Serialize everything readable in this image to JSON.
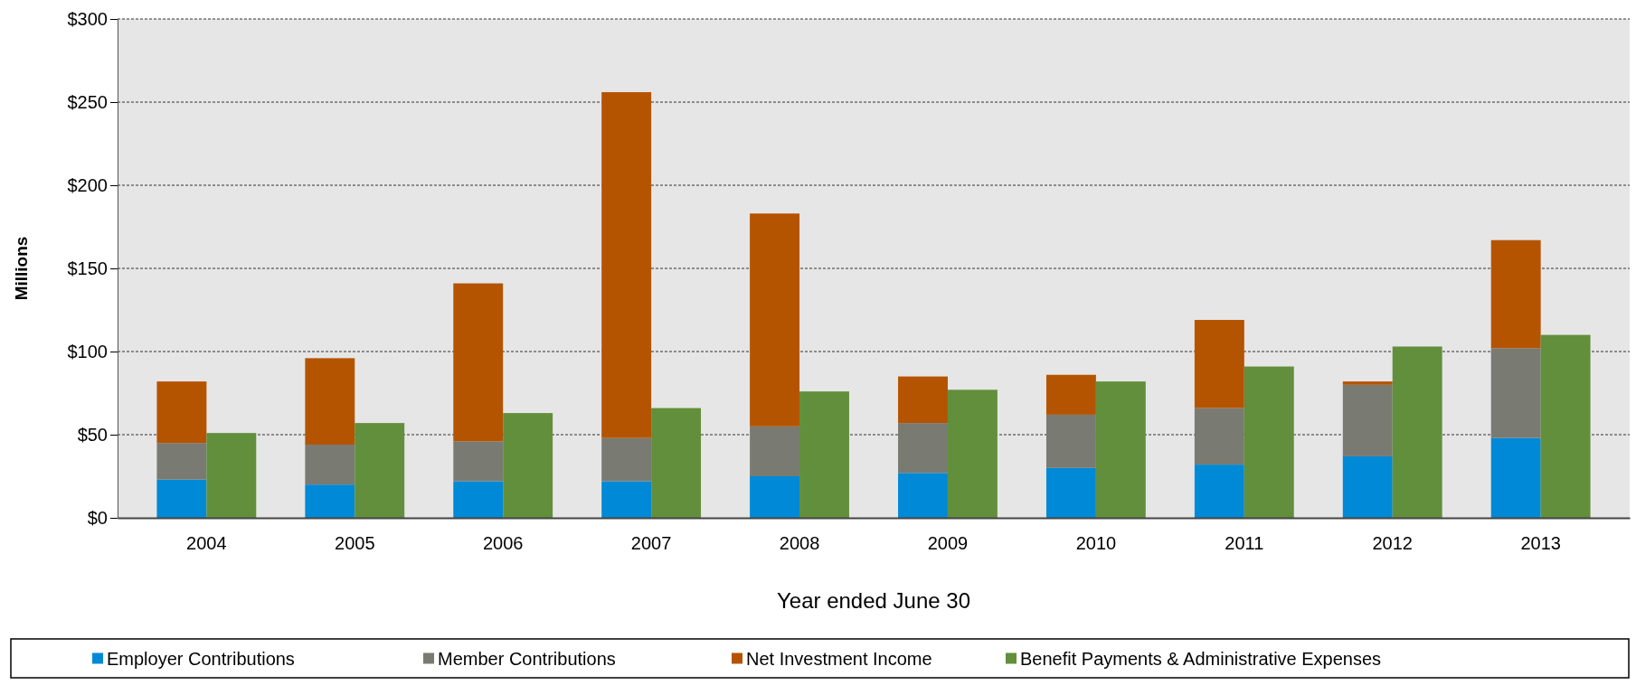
{
  "chart_data": {
    "type": "bar",
    "xlabel": "Year ended June 30",
    "ylabel": "Millions",
    "categories": [
      "2004",
      "2005",
      "2006",
      "2007",
      "2008",
      "2009",
      "2010",
      "2011",
      "2012",
      "2013"
    ],
    "series": [
      {
        "name": "Employer Contributions",
        "color": "#0089d6",
        "values": [
          23,
          20,
          22,
          22,
          25,
          27,
          30,
          32,
          37,
          48
        ],
        "base": [
          0,
          0,
          0,
          0,
          0,
          0,
          0,
          0,
          0,
          0
        ]
      },
      {
        "name": "Member Contributions",
        "color": "#797a72",
        "values": [
          22,
          24,
          24,
          26,
          30,
          30,
          32,
          34,
          43,
          54
        ],
        "base": [
          23,
          20,
          22,
          22,
          25,
          27,
          30,
          32,
          37,
          48
        ]
      },
      {
        "name": "Net Investment Income",
        "color": "#b55400",
        "values": [
          37,
          52,
          95,
          208,
          128,
          28,
          24,
          53,
          2,
          65
        ],
        "base": [
          45,
          44,
          46,
          48,
          55,
          57,
          62,
          66,
          80,
          102
        ]
      },
      {
        "name": "Benefit Payments & Administrative Expenses",
        "color": "#628f3b",
        "values": [
          51,
          57,
          63,
          66,
          76,
          77,
          82,
          91,
          103,
          110
        ]
      }
    ],
    "ylim": [
      0,
      300
    ],
    "yticks": [
      {
        "value": 0,
        "label": "$0"
      },
      {
        "value": 50,
        "label": "$50"
      },
      {
        "value": 100,
        "label": "$100"
      },
      {
        "value": 150,
        "label": "$150"
      },
      {
        "value": 200,
        "label": "$200"
      },
      {
        "value": 250,
        "label": "$250"
      },
      {
        "value": 300,
        "label": "$300"
      }
    ],
    "grid": "y",
    "legend": "bottom"
  }
}
